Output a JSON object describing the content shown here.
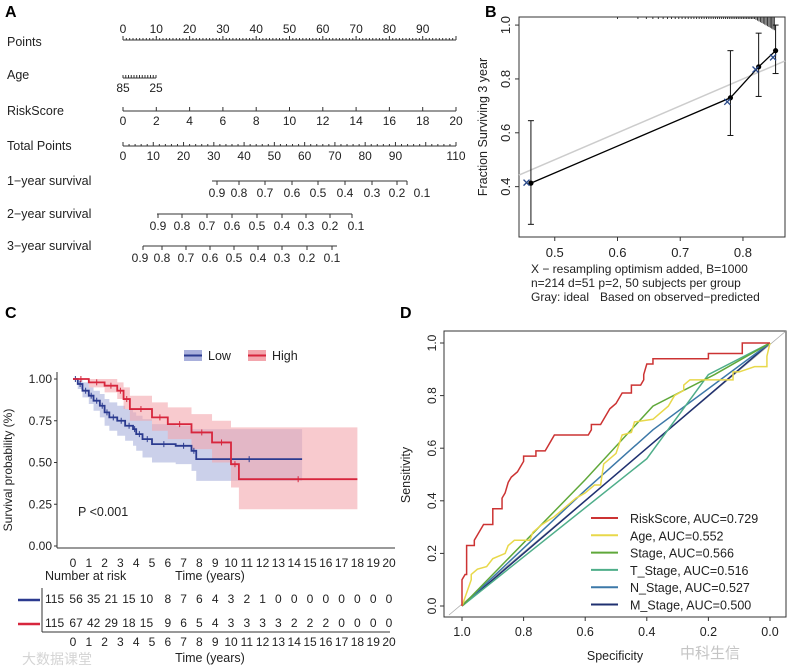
{
  "panels": {
    "a": "A",
    "b": "B",
    "c": "C",
    "d": "D"
  },
  "chart_data": [
    {
      "type": "nomogram",
      "panel": "A",
      "rows": [
        {
          "label": "Points",
          "ticks": [
            "0",
            "10",
            "20",
            "30",
            "40",
            "50",
            "60",
            "70",
            "80",
            "90"
          ],
          "range": [
            0,
            100
          ]
        },
        {
          "label": "Age",
          "ticks": [
            "85",
            "25"
          ]
        },
        {
          "label": "RiskScore",
          "ticks": [
            "0",
            "2",
            "4",
            "6",
            "8",
            "10",
            "12",
            "14",
            "16",
            "18",
            "20"
          ],
          "range": [
            0,
            20
          ]
        },
        {
          "label": "Total Points",
          "ticks": [
            "0",
            "10",
            "20",
            "30",
            "40",
            "50",
            "60",
            "70",
            "80",
            "90",
            "110"
          ],
          "range": [
            0,
            110
          ]
        },
        {
          "label": "1−year survival",
          "ticks": [
            "0.9",
            "0.8",
            "0.7",
            "0.6",
            "0.5",
            "0.4",
            "0.3",
            "0.2",
            "0.1"
          ]
        },
        {
          "label": "2−year survival",
          "ticks": [
            "0.9",
            "0.8",
            "0.7",
            "0.6",
            "0.5",
            "0.4",
            "0.3",
            "0.2",
            "0.1"
          ]
        },
        {
          "label": "3−year survival",
          "ticks": [
            "0.9",
            "0.8",
            "0.7",
            "0.6",
            "0.5",
            "0.4",
            "0.3",
            "0.2",
            "0.1"
          ]
        }
      ]
    },
    {
      "type": "scatter",
      "panel": "B",
      "ylabel": "Fraction Surviving 3 year",
      "xlim": [
        0.443,
        0.867
      ],
      "ylim": [
        0.213,
        1.03
      ],
      "xticks": [
        "0.5",
        "0.6",
        "0.7",
        "0.8"
      ],
      "yticks": [
        "0.4",
        "0.6",
        "0.8",
        "1.0"
      ],
      "observed": [
        {
          "x": 0.462,
          "y": 0.413,
          "lo": 0.26,
          "hi": 0.645
        },
        {
          "x": 0.78,
          "y": 0.73,
          "lo": 0.59,
          "hi": 0.905
        },
        {
          "x": 0.825,
          "y": 0.845,
          "lo": 0.735,
          "hi": 0.97
        },
        {
          "x": 0.852,
          "y": 0.905,
          "lo": 0.82,
          "hi": 1.0
        }
      ],
      "corrected": [
        {
          "x": 0.455,
          "y": 0.415
        },
        {
          "x": 0.775,
          "y": 0.715
        },
        {
          "x": 0.82,
          "y": 0.835
        },
        {
          "x": 0.848,
          "y": 0.88
        }
      ],
      "ideal_line": "y=x",
      "notes": [
        "X − resampling optimism added, B=1000",
        "n=214 d=51 p=2, 50 subjects per group",
        "Gray: ideal",
        "Based on observed−predicted"
      ]
    },
    {
      "type": "line",
      "panel": "C",
      "ylabel": "Survival probability (%)",
      "xlabel": "Time (years)",
      "xlim": [
        0,
        20
      ],
      "ylim": [
        0,
        1
      ],
      "yticks": [
        "0.00",
        "0.25",
        "0.50",
        "0.75",
        "1.00"
      ],
      "xticks": [
        "0",
        "1",
        "2",
        "3",
        "4",
        "5",
        "6",
        "7",
        "8",
        "9",
        "10",
        "11",
        "12",
        "13",
        "14",
        "15",
        "16",
        "17",
        "18",
        "19",
        "20"
      ],
      "pvalue": "P <0.001",
      "series": [
        {
          "name": "Low",
          "color": "#2b3a8f",
          "fill": "#a9b0dc",
          "t": [
            0,
            0.3,
            0.6,
            1,
            1.3,
            1.7,
            2,
            2.3,
            2.8,
            3.3,
            3.8,
            4,
            4.4,
            5,
            6.5,
            7.5,
            7.8,
            14.5
          ],
          "s": [
            1,
            0.97,
            0.93,
            0.9,
            0.87,
            0.84,
            0.8,
            0.77,
            0.75,
            0.72,
            0.7,
            0.67,
            0.64,
            0.61,
            0.6,
            0.57,
            0.52,
            0.52
          ],
          "lo": [
            1,
            0.94,
            0.89,
            0.85,
            0.81,
            0.77,
            0.72,
            0.69,
            0.66,
            0.63,
            0.6,
            0.57,
            0.53,
            0.5,
            0.49,
            0.45,
            0.39,
            0.39
          ],
          "hi": [
            1,
            1,
            0.98,
            0.95,
            0.93,
            0.91,
            0.88,
            0.86,
            0.84,
            0.82,
            0.8,
            0.78,
            0.76,
            0.73,
            0.72,
            0.7,
            0.7,
            0.7
          ]
        },
        {
          "name": "High",
          "color": "#d7263d",
          "fill": "#f3a6ad",
          "t": [
            0,
            1,
            2,
            2.8,
            3.2,
            3.6,
            5,
            6,
            7.5,
            8.8,
            10,
            10.5,
            18
          ],
          "s": [
            1,
            0.98,
            0.96,
            0.93,
            0.88,
            0.82,
            0.77,
            0.73,
            0.68,
            0.62,
            0.49,
            0.4,
            0.4
          ],
          "lo": [
            1,
            0.95,
            0.92,
            0.88,
            0.82,
            0.75,
            0.69,
            0.64,
            0.58,
            0.5,
            0.35,
            0.22,
            0.22
          ],
          "hi": [
            1,
            1,
            1,
            0.98,
            0.95,
            0.9,
            0.86,
            0.83,
            0.79,
            0.75,
            0.71,
            0.71,
            0.71
          ]
        }
      ],
      "risk_table": {
        "title": "Number at risk",
        "xlabel": "Time (years)",
        "rows": [
          {
            "name": "Low",
            "color": "#2b3a8f",
            "values": [
              "115",
              "56",
              "35",
              "21",
              "15",
              "10",
              "8",
              "7",
              "6",
              "4",
              "3",
              "2",
              "1",
              "0",
              "0",
              "0",
              "0",
              "0",
              "0",
              "0",
              "0"
            ]
          },
          {
            "name": "High",
            "color": "#d7263d",
            "values": [
              "115",
              "67",
              "42",
              "29",
              "18",
              "15",
              "9",
              "6",
              "5",
              "4",
              "3",
              "3",
              "3",
              "3",
              "2",
              "2",
              "2",
              "0",
              "0",
              "0",
              "0"
            ]
          }
        ]
      }
    },
    {
      "type": "line",
      "panel": "D",
      "xlabel": "Specificity",
      "ylabel": "Sensitivity",
      "xlim": [
        1.0,
        0.0
      ],
      "ylim": [
        0,
        1
      ],
      "xticks": [
        "1.0",
        "0.8",
        "0.6",
        "0.4",
        "0.2",
        "0.0"
      ],
      "yticks": [
        "0.0",
        "0.2",
        "0.4",
        "0.6",
        "0.8",
        "1.0"
      ],
      "series": [
        {
          "name": "RiskScore, AUC=0.729",
          "color": "#cc3333",
          "pts": [
            [
              1,
              0
            ],
            [
              1,
              0.1
            ],
            [
              0.99,
              0.12
            ],
            [
              0.985,
              0.12
            ],
            [
              0.985,
              0.23
            ],
            [
              0.96,
              0.23
            ],
            [
              0.96,
              0.25
            ],
            [
              0.95,
              0.27
            ],
            [
              0.94,
              0.29
            ],
            [
              0.93,
              0.31
            ],
            [
              0.9,
              0.31
            ],
            [
              0.9,
              0.37
            ],
            [
              0.87,
              0.37
            ],
            [
              0.87,
              0.41
            ],
            [
              0.86,
              0.43
            ],
            [
              0.85,
              0.47
            ],
            [
              0.84,
              0.49
            ],
            [
              0.82,
              0.51
            ],
            [
              0.81,
              0.53
            ],
            [
              0.8,
              0.55
            ],
            [
              0.8,
              0.57
            ],
            [
              0.76,
              0.57
            ],
            [
              0.76,
              0.59
            ],
            [
              0.73,
              0.59
            ],
            [
              0.72,
              0.61
            ],
            [
              0.71,
              0.63
            ],
            [
              0.7,
              0.65
            ],
            [
              0.59,
              0.65
            ],
            [
              0.58,
              0.67
            ],
            [
              0.58,
              0.69
            ],
            [
              0.55,
              0.69
            ],
            [
              0.54,
              0.71
            ],
            [
              0.53,
              0.73
            ],
            [
              0.52,
              0.75
            ],
            [
              0.5,
              0.77
            ],
            [
              0.49,
              0.79
            ],
            [
              0.48,
              0.81
            ],
            [
              0.45,
              0.81
            ],
            [
              0.45,
              0.84
            ],
            [
              0.42,
              0.84
            ],
            [
              0.41,
              0.86
            ],
            [
              0.41,
              0.88
            ],
            [
              0.4,
              0.92
            ],
            [
              0.38,
              0.92
            ],
            [
              0.38,
              0.94
            ],
            [
              0.2,
              0.94
            ],
            [
              0.2,
              0.96
            ],
            [
              0.09,
              0.96
            ],
            [
              0.09,
              1
            ],
            [
              0,
              1
            ]
          ]
        },
        {
          "name": "Age, AUC=0.552",
          "color": "#e8d84a",
          "pts": [
            [
              1,
              0
            ],
            [
              0.97,
              0.1
            ],
            [
              0.97,
              0.12
            ],
            [
              0.95,
              0.14
            ],
            [
              0.92,
              0.15
            ],
            [
              0.9,
              0.18
            ],
            [
              0.86,
              0.2
            ],
            [
              0.85,
              0.23
            ],
            [
              0.83,
              0.25
            ],
            [
              0.78,
              0.25
            ],
            [
              0.77,
              0.28
            ],
            [
              0.74,
              0.31
            ],
            [
              0.7,
              0.34
            ],
            [
              0.65,
              0.39
            ],
            [
              0.63,
              0.41
            ],
            [
              0.6,
              0.43
            ],
            [
              0.57,
              0.46
            ],
            [
              0.55,
              0.46
            ],
            [
              0.54,
              0.54
            ],
            [
              0.5,
              0.58
            ],
            [
              0.48,
              0.65
            ],
            [
              0.45,
              0.66
            ],
            [
              0.44,
              0.7
            ],
            [
              0.38,
              0.71
            ],
            [
              0.33,
              0.76
            ],
            [
              0.31,
              0.8
            ],
            [
              0.28,
              0.82
            ],
            [
              0.28,
              0.84
            ],
            [
              0.26,
              0.86
            ],
            [
              0.12,
              0.86
            ],
            [
              0.12,
              0.89
            ],
            [
              0.1,
              0.89
            ],
            [
              0.05,
              0.91
            ],
            [
              0.01,
              0.91
            ],
            [
              0.01,
              0.95
            ],
            [
              0,
              1
            ]
          ]
        },
        {
          "name": "Stage, AUC=0.566",
          "color": "#5fa83a",
          "pts": [
            [
              1,
              0
            ],
            [
              0.6,
              0.48
            ],
            [
              0.38,
              0.76
            ],
            [
              0.18,
              0.88
            ],
            [
              0,
              1
            ]
          ]
        },
        {
          "name": "T_Stage, AUC=0.516",
          "color": "#4fae8a",
          "pts": [
            [
              1,
              0
            ],
            [
              0.4,
              0.56
            ],
            [
              0.2,
              0.88
            ],
            [
              0,
              1
            ]
          ]
        },
        {
          "name": "N_Stage, AUC=0.527",
          "color": "#3c78a8",
          "pts": [
            [
              1,
              0
            ],
            [
              0.6,
              0.44
            ],
            [
              0.38,
              0.67
            ],
            [
              0,
              1
            ]
          ]
        },
        {
          "name": "M_Stage, AUC=0.500",
          "color": "#1f3070",
          "pts": [
            [
              1,
              0
            ],
            [
              0,
              1
            ]
          ]
        }
      ]
    }
  ],
  "watermarks": [
    "大数据课堂",
    "中科生信"
  ]
}
